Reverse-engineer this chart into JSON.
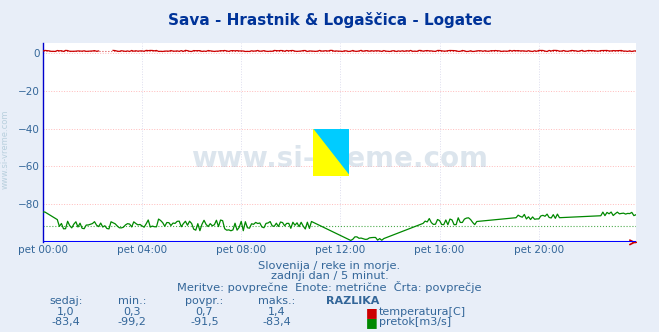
{
  "title": "Sava - Hrastnik & Logaščica - Logatec",
  "title_color": "#003399",
  "bg_color": "#e8eef8",
  "plot_bg_color": "#ffffff",
  "grid_color": "#ffbbbb",
  "grid_color_v": "#ddddee",
  "axis_color": "#0000cc",
  "text_color": "#336699",
  "watermark": "www.si-vreme.com",
  "watermark_color": "#bbccdd",
  "subtitle1": "Slovenija / reke in morje.",
  "subtitle2": "zadnji dan / 5 minut.",
  "subtitle3": "Meritve: povprečne  Enote: metrične  Črta: povprečje",
  "xlabel_ticks": [
    "pet 00:00",
    "pet 04:00",
    "pet 08:00",
    "pet 12:00",
    "pet 16:00",
    "pet 20:00"
  ],
  "xlabel_tick_positions": [
    0,
    48,
    96,
    144,
    192,
    240
  ],
  "total_points": 288,
  "ylim": [
    -100,
    5
  ],
  "yticks": [
    0,
    -20,
    -40,
    -60,
    -80
  ],
  "temp_color": "#cc0000",
  "flow_color": "#008800",
  "bottom_line_color": "#0000ff",
  "right_arrow_color": "#cc0000",
  "legend_labels": [
    "sedaj:",
    "min.:",
    "povpr.:",
    "maks.:",
    "RAZLIKA"
  ],
  "legend_values_temp": [
    "1,0",
    "0,3",
    "0,7",
    "1,4"
  ],
  "legend_values_flow": [
    "-83,4",
    "-99,2",
    "-91,5",
    "-83,4"
  ],
  "legend_color_temp": "#cc0000",
  "legend_color_flow": "#008800",
  "legend_label_temp": "temperatura[C]",
  "legend_label_flow": "pretok[m3/s]",
  "temp_avg": 0.7,
  "flow_avg": -91.5,
  "logo_colors": [
    "#ffff00",
    "#00ccff",
    "#0000cc"
  ],
  "left_label_color": "#99bbcc"
}
